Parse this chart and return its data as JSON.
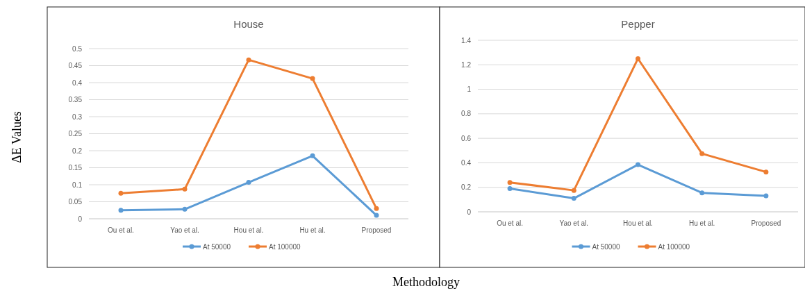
{
  "chart_data": [
    {
      "type": "line",
      "title": "House",
      "ylabel": "ΔE Values",
      "xlabel": "Methodology",
      "categories": [
        "Ou et al.",
        "Yao et al.",
        "Hou et al.",
        "Hu et al.",
        "Proposed"
      ],
      "series": [
        {
          "name": "At 50000",
          "color": "#5b9bd5",
          "values": [
            0.025,
            0.028,
            0.107,
            0.185,
            0.01
          ]
        },
        {
          "name": "At 100000",
          "color": "#ed7d31",
          "values": [
            0.075,
            0.087,
            0.467,
            0.412,
            0.03
          ]
        }
      ],
      "ylim": [
        0,
        0.5
      ],
      "yticks": [
        0,
        0.05,
        0.1,
        0.15,
        0.2,
        0.25,
        0.3,
        0.35,
        0.4,
        0.45,
        0.5
      ],
      "grid": "y",
      "legend": "bottom",
      "marker": "circle",
      "line_style": "solid"
    },
    {
      "type": "line",
      "title": "Pepper",
      "categories": [
        "Ou et al.",
        "Yao et al.",
        "Hou et al.",
        "Hu et al.",
        "Proposed"
      ],
      "series": [
        {
          "name": "At 50000",
          "color": "#5b9bd5",
          "values": [
            0.19,
            0.11,
            0.385,
            0.155,
            0.13
          ]
        },
        {
          "name": "At 100000",
          "color": "#ed7d31",
          "values": [
            0.24,
            0.175,
            1.25,
            0.475,
            0.325
          ]
        }
      ],
      "ylim": [
        0,
        1.4
      ],
      "yticks": [
        0,
        0.2,
        0.4,
        0.6,
        0.8,
        1,
        1.2,
        1.4
      ],
      "grid": "y",
      "legend": "bottom",
      "marker": "circle",
      "line_style": "solid"
    }
  ]
}
